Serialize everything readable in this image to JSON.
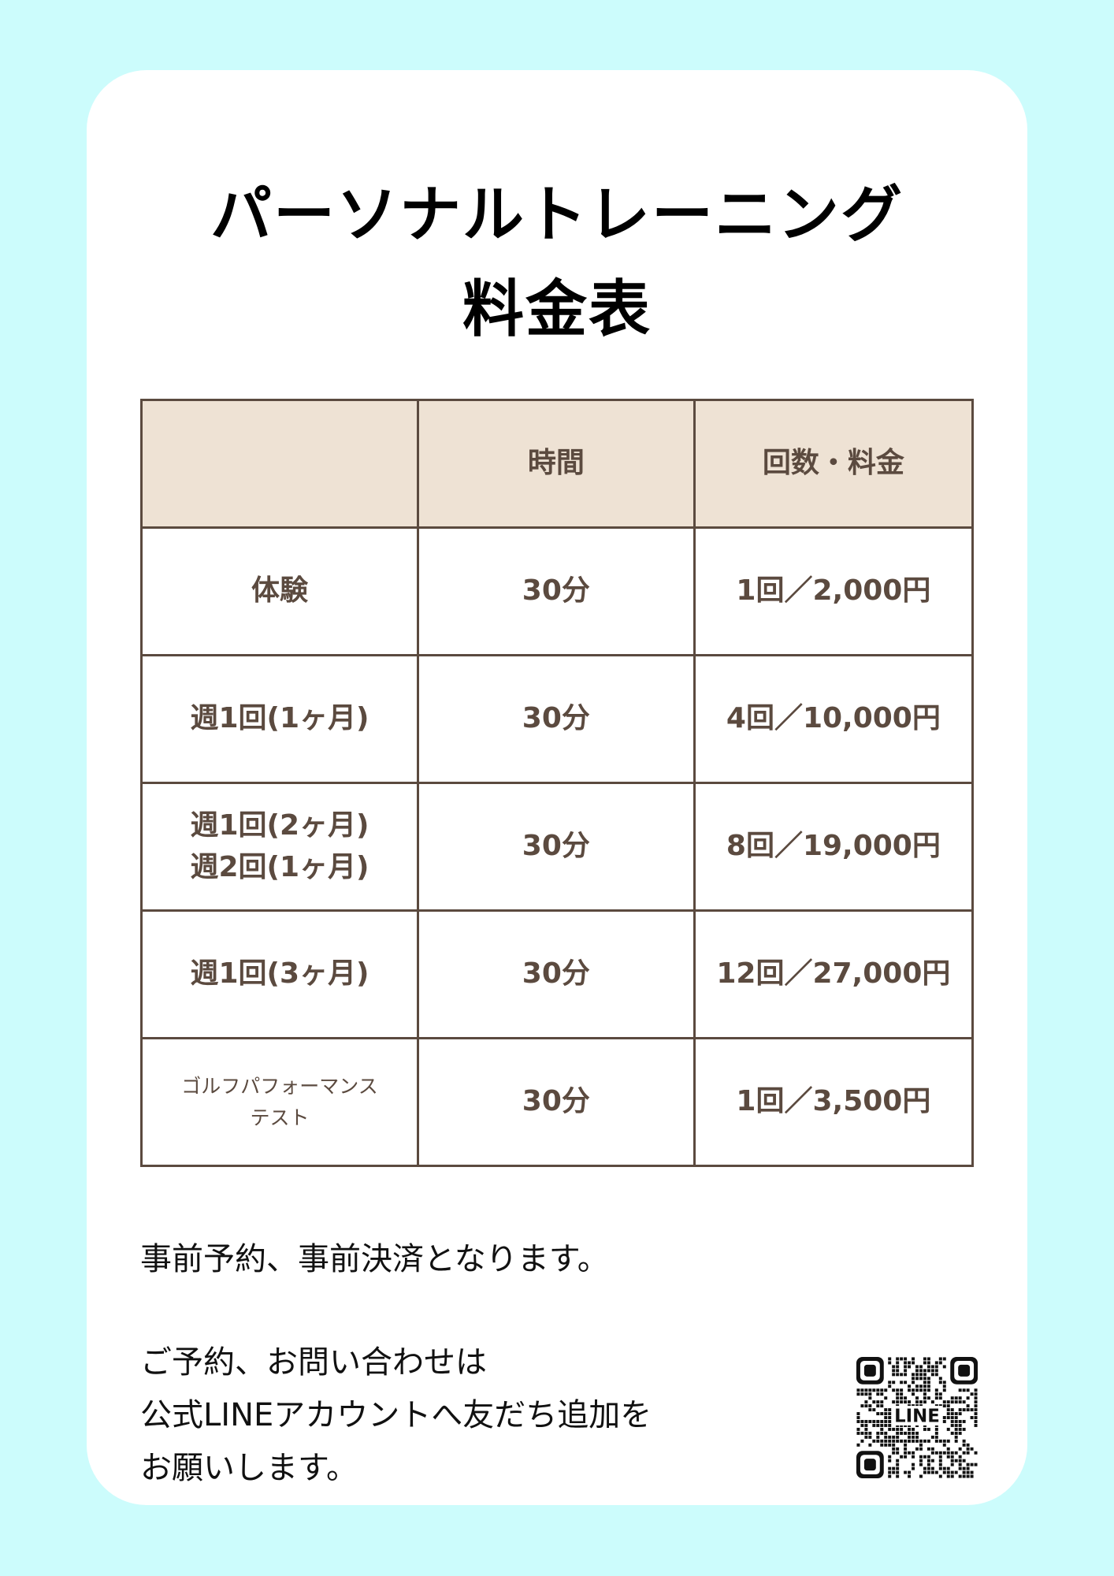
{
  "title": {
    "line1": "パーソナルトレーニング",
    "line2": "料金表"
  },
  "table": {
    "headers": [
      "",
      "時間",
      "回数・料金"
    ],
    "rows": [
      {
        "plan": "体験",
        "plan2": "",
        "time": "30分",
        "price": "1回／2,000円"
      },
      {
        "plan": "週1回(1ヶ月)",
        "plan2": "",
        "time": "30分",
        "price": "4回／10,000円"
      },
      {
        "plan": "週1回(2ヶ月)",
        "plan2": "週2回(1ヶ月)",
        "time": "30分",
        "price": "8回／19,000円"
      },
      {
        "plan": "週1回(3ヶ月)",
        "plan2": "",
        "time": "30分",
        "price": "12回／27,000円"
      },
      {
        "plan": "ゴルフパフォーマンス",
        "plan2": "テスト",
        "time": "30分",
        "price": "1回／3,500円"
      }
    ]
  },
  "notes": {
    "prepay": "事前予約、事前決済となります。",
    "contact": [
      "ご予約、お問い合わせは",
      "公式LINEアカウントへ友だち追加を",
      "お願いします。"
    ]
  },
  "qr": {
    "label": "LINE",
    "icon": "line-qr-code"
  },
  "colors": {
    "background": "#ccfcfc",
    "header": "#eee2d4",
    "text": "#5b4a3f"
  }
}
